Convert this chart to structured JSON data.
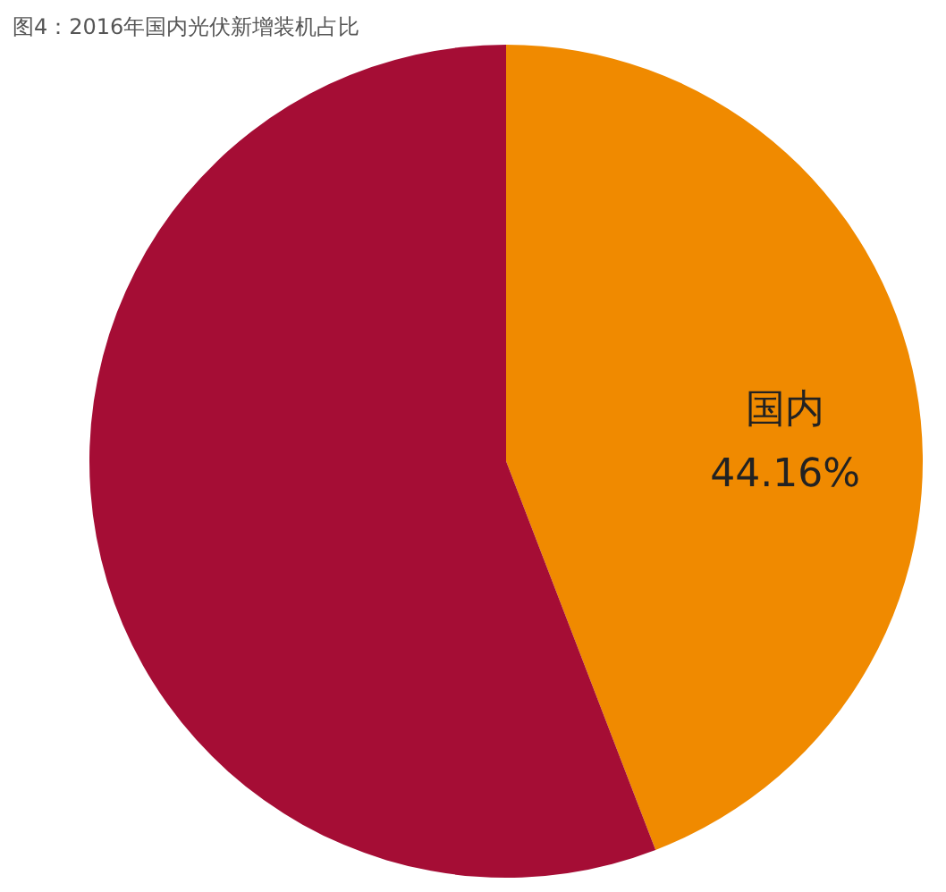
{
  "chart_data": {
    "type": "pie",
    "title": "图4：2016年国内光伏新增装机占比",
    "categories": [
      "国内",
      null
    ],
    "values": [
      44.16,
      55.84
    ],
    "colors": [
      "#f08a00",
      "#a50d35"
    ],
    "value_labels": [
      "44.16%",
      null
    ],
    "legend": false
  }
}
